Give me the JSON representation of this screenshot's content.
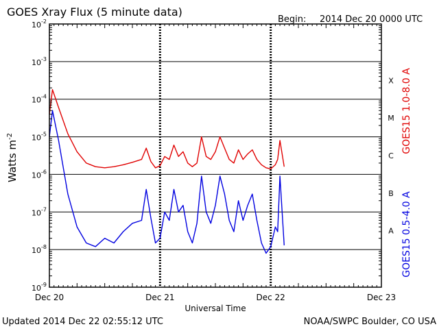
{
  "header": {
    "title": "GOES Xray Flux (5 minute data)",
    "begin_label": "Begin:",
    "begin_value": "2014 Dec 20 0000 UTC"
  },
  "footer": {
    "updated": "Updated 2014 Dec 22 02:55:12 UTC",
    "credit": "NOAA/SWPC Boulder, CO USA"
  },
  "chart_data": {
    "type": "line",
    "xlabel": "Universal Time",
    "ylabel": "Watts m",
    "ylabel_sup": "-2",
    "y_scale": "log",
    "ylim": [
      1e-09,
      0.01
    ],
    "xlim": [
      "2014-12-20 00:00",
      "2014-12-23 00:00"
    ],
    "x_ticks": [
      "Dec 20",
      "Dec 21",
      "Dec 22",
      "Dec 23"
    ],
    "y_ticks": [
      {
        "base": "10",
        "exp": "-9"
      },
      {
        "base": "10",
        "exp": "-8"
      },
      {
        "base": "10",
        "exp": "-7"
      },
      {
        "base": "10",
        "exp": "-6"
      },
      {
        "base": "10",
        "exp": "-5"
      },
      {
        "base": "10",
        "exp": "-4"
      },
      {
        "base": "10",
        "exp": "-3"
      },
      {
        "base": "10",
        "exp": "-2"
      }
    ],
    "flare_classes": [
      "A",
      "B",
      "C",
      "M",
      "X"
    ],
    "colors": {
      "long": "#e00000",
      "short": "#0000e0",
      "frame": "#000000"
    },
    "series": [
      {
        "name": "GOES15 1.0-8.0 A",
        "color": "#e00000",
        "x": [
          "2014-12-20 00:00",
          "2014-12-20 00:40",
          "2014-12-20 02:00",
          "2014-12-20 04:00",
          "2014-12-20 06:00",
          "2014-12-20 08:00",
          "2014-12-20 10:00",
          "2014-12-20 12:00",
          "2014-12-20 14:00",
          "2014-12-20 16:00",
          "2014-12-20 18:00",
          "2014-12-20 20:00",
          "2014-12-20 21:00",
          "2014-12-20 22:00",
          "2014-12-20 23:00",
          "2014-12-21 00:00",
          "2014-12-21 01:00",
          "2014-12-21 02:00",
          "2014-12-21 03:00",
          "2014-12-21 04:00",
          "2014-12-21 05:00",
          "2014-12-21 06:00",
          "2014-12-21 07:00",
          "2014-12-21 08:00",
          "2014-12-21 09:00",
          "2014-12-21 10:00",
          "2014-12-21 11:00",
          "2014-12-21 12:00",
          "2014-12-21 13:00",
          "2014-12-21 14:00",
          "2014-12-21 15:00",
          "2014-12-21 16:00",
          "2014-12-21 17:00",
          "2014-12-21 18:00",
          "2014-12-21 19:00",
          "2014-12-21 20:00",
          "2014-12-21 21:00",
          "2014-12-21 22:00",
          "2014-12-21 23:00",
          "2014-12-22 00:00",
          "2014-12-22 01:00",
          "2014-12-22 01:30",
          "2014-12-22 02:00",
          "2014-12-22 02:55"
        ],
        "y": [
          4e-05,
          0.00018,
          6e-05,
          1.2e-05,
          4e-06,
          2e-06,
          1.6e-06,
          1.5e-06,
          1.6e-06,
          1.8e-06,
          2.1e-06,
          2.5e-06,
          5e-06,
          2.2e-06,
          1.5e-06,
          1.7e-06,
          3e-06,
          2.5e-06,
          6e-06,
          3e-06,
          4e-06,
          2e-06,
          1.6e-06,
          2e-06,
          1e-05,
          3e-06,
          2.5e-06,
          4e-06,
          1e-05,
          5e-06,
          2.5e-06,
          2e-06,
          4.5e-06,
          2.5e-06,
          3.5e-06,
          4.5e-06,
          2.5e-06,
          1.8e-06,
          1.5e-06,
          1.4e-06,
          1.8e-06,
          2.5e-06,
          8e-06,
          1.6e-06
        ]
      },
      {
        "name": "GOES15 0.5-4.0 A",
        "color": "#0000e0",
        "x": [
          "2014-12-20 00:00",
          "2014-12-20 00:40",
          "2014-12-20 02:00",
          "2014-12-20 04:00",
          "2014-12-20 06:00",
          "2014-12-20 08:00",
          "2014-12-20 10:00",
          "2014-12-20 12:00",
          "2014-12-20 14:00",
          "2014-12-20 16:00",
          "2014-12-20 18:00",
          "2014-12-20 20:00",
          "2014-12-20 21:00",
          "2014-12-20 22:00",
          "2014-12-20 23:00",
          "2014-12-21 00:00",
          "2014-12-21 01:00",
          "2014-12-21 02:00",
          "2014-12-21 03:00",
          "2014-12-21 04:00",
          "2014-12-21 05:00",
          "2014-12-21 06:00",
          "2014-12-21 07:00",
          "2014-12-21 08:00",
          "2014-12-21 09:00",
          "2014-12-21 10:00",
          "2014-12-21 11:00",
          "2014-12-21 12:00",
          "2014-12-21 13:00",
          "2014-12-21 14:00",
          "2014-12-21 15:00",
          "2014-12-21 16:00",
          "2014-12-21 17:00",
          "2014-12-21 18:00",
          "2014-12-21 19:00",
          "2014-12-21 20:00",
          "2014-12-21 21:00",
          "2014-12-21 22:00",
          "2014-12-21 23:00",
          "2014-12-22 00:00",
          "2014-12-22 01:00",
          "2014-12-22 01:30",
          "2014-12-22 02:00",
          "2014-12-22 02:55"
        ],
        "y": [
          1e-05,
          5e-05,
          8e-06,
          3e-07,
          4e-08,
          1.5e-08,
          1.2e-08,
          2e-08,
          1.5e-08,
          3e-08,
          5e-08,
          6e-08,
          4e-07,
          7e-08,
          1.5e-08,
          2e-08,
          1e-07,
          6e-08,
          4e-07,
          1e-07,
          1.5e-07,
          3e-08,
          1.5e-08,
          5e-08,
          9e-07,
          1e-07,
          5e-08,
          1.5e-07,
          9e-07,
          3e-07,
          6e-08,
          3e-08,
          2e-07,
          6e-08,
          1.5e-07,
          3e-07,
          6e-08,
          1.5e-08,
          8e-09,
          1.2e-08,
          4e-08,
          3e-08,
          9e-07,
          1.3e-08
        ]
      }
    ]
  }
}
